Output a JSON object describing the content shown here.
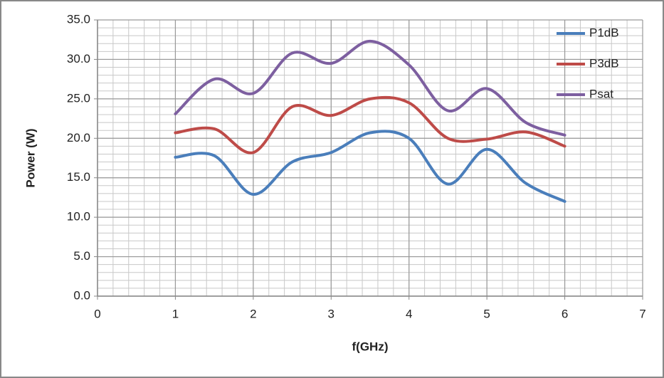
{
  "chart_data": {
    "type": "line",
    "x_label": "f(GHz)",
    "y_label": "Power (W)",
    "x": [
      1,
      1.5,
      2,
      2.5,
      3,
      3.5,
      4,
      4.5,
      5,
      5.5,
      6
    ],
    "series": [
      {
        "name": "P1dB",
        "color": "#4a7ebb",
        "values": [
          17.6,
          17.8,
          12.9,
          17.0,
          18.2,
          20.7,
          20.0,
          14.2,
          18.6,
          14.3,
          12.0
        ]
      },
      {
        "name": "P3dB",
        "color": "#be4b48",
        "values": [
          20.7,
          21.2,
          18.2,
          24.0,
          22.9,
          25.0,
          24.5,
          20.0,
          19.9,
          20.8,
          19.0
        ]
      },
      {
        "name": "Psat",
        "color": "#7d5fa0",
        "values": [
          23.1,
          27.5,
          25.7,
          30.8,
          29.5,
          32.3,
          29.3,
          23.5,
          26.3,
          22.0,
          20.4
        ]
      }
    ],
    "smooth": true,
    "xlim": [
      0,
      7
    ],
    "xticks": [
      0,
      1,
      2,
      3,
      4,
      5,
      6,
      7
    ],
    "ylim": [
      0,
      35
    ],
    "yticks": [
      {
        "value": 0,
        "label": "0.0"
      },
      {
        "value": 5,
        "label": "5.0"
      },
      {
        "value": 10,
        "label": "10.0"
      },
      {
        "value": 15,
        "label": "15.0"
      },
      {
        "value": 20,
        "label": "20.0"
      },
      {
        "value": 25,
        "label": "25.0"
      },
      {
        "value": 30,
        "label": "30.0"
      },
      {
        "value": 35,
        "label": "35.0"
      }
    ],
    "grid": true,
    "minor_grid": {
      "x": 0.2,
      "y": 1
    },
    "legend": "upper right"
  }
}
